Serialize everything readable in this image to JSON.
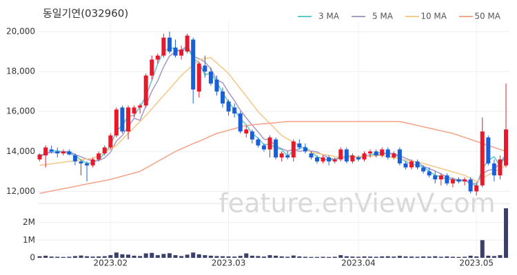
{
  "chart_data": {
    "type": "candlestick",
    "title": "동일기연(032960)",
    "watermark": "feature.enViewV.com",
    "categories": [
      null,
      null,
      null,
      null,
      null,
      null,
      null,
      null,
      null,
      null,
      null,
      null,
      "2023.02",
      null,
      null,
      null,
      null,
      null,
      null,
      null,
      null,
      null,
      null,
      null,
      null,
      null,
      null,
      null,
      null,
      null,
      null,
      null,
      "2023.03",
      null,
      null,
      null,
      null,
      null,
      null,
      null,
      null,
      null,
      null,
      null,
      null,
      null,
      null,
      null,
      null,
      null,
      null,
      null,
      null,
      null,
      "2023.04",
      null,
      null,
      null,
      null,
      null,
      null,
      null,
      null,
      null,
      null,
      null,
      null,
      null,
      null,
      null,
      null,
      null,
      null,
      null,
      "2023.05",
      null,
      null,
      null,
      null,
      null
    ],
    "open": [
      13600,
      13800,
      14100,
      14000,
      13900,
      14000,
      13800,
      13500,
      13400,
      13300,
      13600,
      13900,
      14200,
      14800,
      16200,
      15000,
      15900,
      16200,
      16300,
      17800,
      18600,
      18800,
      19700,
      19200,
      18800,
      19000,
      19600,
      17000,
      18300,
      18000,
      17600,
      17000,
      16500,
      16200,
      15900,
      14900,
      15000,
      14600,
      14300,
      14100,
      14600,
      13700,
      13800,
      13700,
      14400,
      14200,
      13900,
      13700,
      13500,
      13700,
      13500,
      13600,
      14100,
      13500,
      13700,
      13600,
      13900,
      14000,
      13800,
      14100,
      13700,
      14100,
      13400,
      13200,
      13500,
      13200,
      13000,
      12800,
      12600,
      12800,
      12400,
      12600,
      12500,
      12600,
      12000,
      12300,
      14700,
      13400,
      12800,
      13300
    ],
    "high": [
      13900,
      14300,
      14300,
      14200,
      14100,
      14100,
      13900,
      13600,
      13500,
      13700,
      14000,
      14300,
      14900,
      16200,
      16300,
      16300,
      16300,
      16400,
      17900,
      18800,
      18900,
      19900,
      20000,
      19600,
      19300,
      19900,
      19700,
      18500,
      18800,
      18200,
      17800,
      17200,
      16600,
      16400,
      16000,
      15300,
      15100,
      14700,
      14400,
      14800,
      14700,
      14000,
      14000,
      14600,
      14600,
      14400,
      14000,
      13800,
      13800,
      13800,
      13700,
      14200,
      14200,
      13900,
      13800,
      14000,
      14100,
      14100,
      14200,
      14200,
      14000,
      14200,
      13500,
      13600,
      13600,
      13300,
      13200,
      13000,
      12900,
      12900,
      12700,
      12700,
      12700,
      12700,
      12400,
      15700,
      14800,
      13600,
      13800,
      17400
    ],
    "low": [
      13500,
      13200,
      13900,
      13700,
      13800,
      13800,
      13300,
      12800,
      12500,
      13200,
      13500,
      13800,
      14100,
      14700,
      14900,
      14600,
      15700,
      15900,
      16200,
      17600,
      18400,
      18700,
      18900,
      18700,
      18600,
      18900,
      16400,
      16700,
      17700,
      17300,
      16800,
      16200,
      15800,
      15700,
      14900,
      14700,
      14400,
      14200,
      14000,
      13700,
      13600,
      13500,
      13600,
      13500,
      14100,
      13900,
      13600,
      13400,
      13400,
      13300,
      13400,
      13500,
      13400,
      13400,
      13500,
      13500,
      13700,
      13700,
      13700,
      13600,
      13600,
      13300,
      13100,
      13100,
      13100,
      12900,
      12700,
      12400,
      12300,
      12300,
      12200,
      12400,
      12300,
      11900,
      11800,
      12200,
      13300,
      12500,
      12600,
      13200
    ],
    "close": [
      13850,
      14200,
      14000,
      13900,
      14000,
      13850,
      13500,
      13400,
      13300,
      13600,
      13900,
      14200,
      14800,
      16100,
      15000,
      16200,
      16200,
      16300,
      17800,
      18600,
      18800,
      19700,
      19000,
      18800,
      19100,
      19800,
      17100,
      18400,
      18000,
      17400,
      17000,
      16400,
      16000,
      15900,
      15000,
      15100,
      14600,
      14300,
      14100,
      14700,
      13700,
      13900,
      13700,
      14500,
      14200,
      14000,
      13700,
      13500,
      13700,
      13500,
      13600,
      14100,
      13500,
      13800,
      13600,
      13900,
      14000,
      13800,
      14100,
      13700,
      13900,
      13400,
      13200,
      13500,
      13200,
      13000,
      12800,
      12600,
      12800,
      12400,
      12600,
      12500,
      12600,
      12000,
      12300,
      15000,
      13400,
      12800,
      13600,
      15100
    ],
    "up_color": "#e8192c",
    "down_color": "#1a5fd6",
    "ylim": [
      11600,
      20550
    ],
    "yticks": [
      {
        "value": 12000,
        "label": "12,000"
      },
      {
        "value": 14000,
        "label": "14,000"
      },
      {
        "value": 16000,
        "label": "16,000"
      },
      {
        "value": 18000,
        "label": "18,000"
      },
      {
        "value": 20000,
        "label": "20,000"
      }
    ],
    "grid": true,
    "legend": "top-right",
    "series": [
      {
        "name": "3 MA",
        "color": "#5cc8cf",
        "values": [
          13700,
          13900,
          14017,
          14033,
          13967,
          13917,
          13783,
          13583,
          13400,
          13433,
          13600,
          13900,
          14300,
          15033,
          15300,
          15767,
          15800,
          16233,
          16767,
          17567,
          18400,
          19033,
          19167,
          19167,
          18967,
          19233,
          18667,
          18433,
          17833,
          17933,
          17467,
          16933,
          16467,
          16100,
          15633,
          15333,
          14900,
          14667,
          14333,
          14367,
          14167,
          14100,
          13767,
          14033,
          14133,
          14233,
          13967,
          13733,
          13633,
          13567,
          13600,
          13733,
          13733,
          13800,
          13633,
          13767,
          13833,
          13900,
          13967,
          13867,
          13900,
          13667,
          13500,
          13367,
          13300,
          13233,
          13000,
          12800,
          12733,
          12600,
          12600,
          12500,
          12567,
          12367,
          12300,
          13100,
          13567,
          13733,
          13267,
          13833
        ]
      },
      {
        "name": "5 MA",
        "color": "#a99bc8",
        "values": [
          13800,
          13900,
          13950,
          13950,
          13990,
          13990,
          13850,
          13730,
          13610,
          13530,
          13540,
          13680,
          13960,
          14520,
          14800,
          15260,
          15660,
          15560,
          16300,
          17020,
          17540,
          18240,
          18780,
          18980,
          19080,
          19280,
          18760,
          18640,
          18480,
          18140,
          17580,
          17440,
          16960,
          16540,
          16060,
          15680,
          15320,
          14980,
          14620,
          14560,
          14280,
          14140,
          14020,
          14100,
          14000,
          14060,
          14020,
          13980,
          13820,
          13680,
          13600,
          13680,
          13680,
          13740,
          13720,
          13780,
          13760,
          13820,
          13880,
          13900,
          13900,
          13780,
          13660,
          13540,
          13440,
          13260,
          13140,
          13020,
          12880,
          12720,
          12640,
          12580,
          12580,
          12420,
          12400,
          12880,
          13060,
          13100,
          13420,
          13860
        ]
      },
      {
        "name": "10 MA",
        "color": "#f5c98a",
        "values": [
          13300,
          13340,
          13380,
          13420,
          13460,
          13500,
          13540,
          13580,
          13620,
          13650,
          13800,
          13970,
          14130,
          14300,
          14600,
          14900,
          15200,
          15500,
          15800,
          16130,
          16470,
          16800,
          17130,
          17470,
          17800,
          18070,
          18330,
          18600,
          18650,
          18700,
          18430,
          18170,
          17900,
          17520,
          17140,
          16760,
          16380,
          16000,
          15700,
          15400,
          15100,
          14800,
          14630,
          14460,
          14290,
          14120,
          13950,
          13900,
          13850,
          13800,
          13750,
          13700,
          13710,
          13730,
          13740,
          13760,
          13770,
          13790,
          13800,
          13740,
          13690,
          13630,
          13570,
          13510,
          13460,
          13400,
          13310,
          13230,
          13140,
          13060,
          12970,
          12890,
          12800,
          12650,
          12500,
          12660,
          12820,
          12980,
          13140,
          13300
        ]
      },
      {
        "name": "50 MA",
        "color": "#f4a58a",
        "values": [
          11900,
          11960,
          12020,
          12080,
          12130,
          12190,
          12250,
          12310,
          12370,
          12430,
          12480,
          12540,
          12600,
          12680,
          12760,
          12840,
          12920,
          13000,
          13170,
          13330,
          13500,
          13670,
          13830,
          14000,
          14130,
          14260,
          14390,
          14510,
          14640,
          14770,
          14900,
          14980,
          15060,
          15140,
          15220,
          15300,
          15330,
          15360,
          15390,
          15410,
          15440,
          15470,
          15500,
          15500,
          15500,
          15500,
          15500,
          15500,
          15500,
          15500,
          15500,
          15500,
          15500,
          15500,
          15500,
          15500,
          15500,
          15500,
          15500,
          15500,
          15500,
          15500,
          15430,
          15370,
          15300,
          15230,
          15170,
          15100,
          15030,
          14970,
          14900,
          14800,
          14700,
          14600,
          14500,
          14400,
          14300,
          14200,
          14100,
          14000
        ]
      }
    ],
    "volume": {
      "color": "#3d3f6b",
      "ylim": [
        0,
        2800000
      ],
      "yticks": [
        0,
        {
          "value": 1000000,
          "label": "1M"
        },
        {
          "value": 2000000,
          "label": "2M"
        }
      ],
      "values": [
        90000,
        120000,
        70000,
        60000,
        50000,
        60000,
        100000,
        130000,
        90000,
        70000,
        80000,
        90000,
        150000,
        300000,
        200000,
        180000,
        120000,
        100000,
        250000,
        280000,
        150000,
        220000,
        260000,
        150000,
        100000,
        180000,
        300000,
        200000,
        150000,
        120000,
        100000,
        90000,
        80000,
        70000,
        110000,
        250000,
        120000,
        100000,
        70000,
        150000,
        120000,
        80000,
        60000,
        130000,
        80000,
        60000,
        50000,
        50000,
        60000,
        50000,
        60000,
        150000,
        90000,
        70000,
        60000,
        80000,
        70000,
        60000,
        80000,
        90000,
        70000,
        110000,
        80000,
        70000,
        60000,
        80000,
        70000,
        90000,
        60000,
        80000,
        60000,
        50000,
        60000,
        120000,
        80000,
        1000000,
        120000,
        100000,
        150000,
        2800000
      ]
    }
  }
}
